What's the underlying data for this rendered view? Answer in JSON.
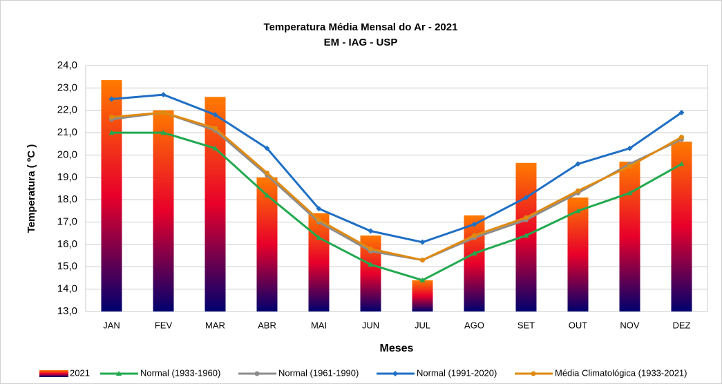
{
  "chart_data": {
    "type": "combo",
    "title": "Temperatura Média Mensal do Ar - 2021",
    "subtitle": "EM - IAG - USP",
    "x_label": "Meses",
    "y_label": "Temperatura ( ºC )",
    "categories": [
      "JAN",
      "FEV",
      "MAR",
      "ABR",
      "MAI",
      "JUN",
      "JUL",
      "AGO",
      "SET",
      "OUT",
      "NOV",
      "DEZ"
    ],
    "ylim": [
      13,
      24
    ],
    "yticks": [
      {
        "value": 13,
        "label": "13,0"
      },
      {
        "value": 14,
        "label": "14,0"
      },
      {
        "value": 15,
        "label": "15,0"
      },
      {
        "value": 16,
        "label": "16,0"
      },
      {
        "value": 17,
        "label": "17,0"
      },
      {
        "value": 18,
        "label": "18,0"
      },
      {
        "value": 19,
        "label": "19,0"
      },
      {
        "value": 20,
        "label": "20,0"
      },
      {
        "value": 21,
        "label": "21,0"
      },
      {
        "value": 22,
        "label": "22,0"
      },
      {
        "value": 23,
        "label": "23,0"
      },
      {
        "value": 24,
        "label": "24,0"
      }
    ],
    "grid": true,
    "legend": "bottom",
    "series": [
      {
        "name": "2021",
        "kind": "bar",
        "color": [
          "#ff7a00",
          "#e8002a",
          "#00006e"
        ],
        "values": [
          23.35,
          22.0,
          22.6,
          19.0,
          17.4,
          16.4,
          14.4,
          17.3,
          19.65,
          18.1,
          19.7,
          20.6
        ]
      },
      {
        "name": "Normal (1933-1960)",
        "kind": "line",
        "marker": "triangle",
        "color": "#22a94f",
        "values": [
          21.0,
          21.0,
          20.3,
          18.2,
          16.3,
          15.1,
          14.4,
          15.6,
          16.4,
          17.5,
          18.3,
          19.6
        ]
      },
      {
        "name": "Normal (1961-1990)",
        "kind": "line",
        "marker": "circle",
        "color": "#8c8c8c",
        "values": [
          21.6,
          21.9,
          21.1,
          19.1,
          17.0,
          15.7,
          15.3,
          16.3,
          17.1,
          18.3,
          19.6,
          20.7
        ]
      },
      {
        "name": "Normal (1991-2020)",
        "kind": "line",
        "marker": "diamond",
        "color": "#1f6fc4",
        "values": [
          22.5,
          22.7,
          21.8,
          20.3,
          17.6,
          16.6,
          16.1,
          16.9,
          18.1,
          19.6,
          20.3,
          21.9
        ]
      },
      {
        "name": "Média Climatológica (1933-2021)",
        "kind": "line",
        "marker": "circle",
        "color": "#e08a10",
        "values": [
          21.7,
          21.9,
          21.2,
          19.2,
          17.1,
          15.8,
          15.3,
          16.4,
          17.2,
          18.4,
          19.5,
          20.8
        ]
      }
    ]
  }
}
